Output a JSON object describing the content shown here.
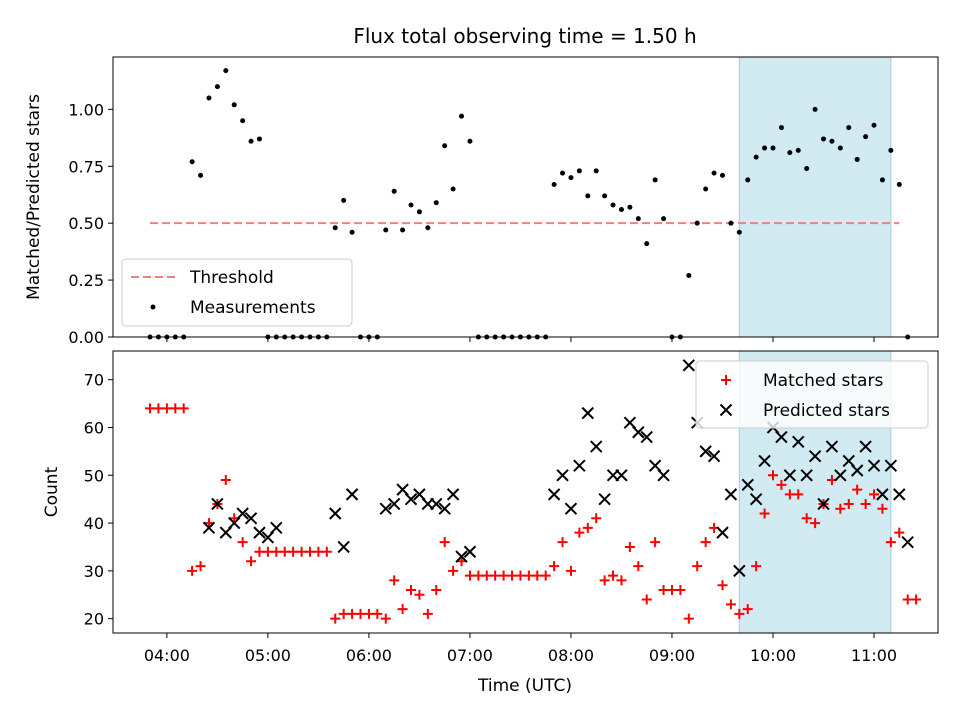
{
  "chart_data": [
    {
      "type": "scatter",
      "title": "Flux total observing time = 1.50 h",
      "xlabel": "",
      "ylabel": "Matched/Predicted stars",
      "xlim": [
        "03:28",
        "11:38"
      ],
      "ylim": [
        0,
        1.23
      ],
      "yticks": [
        "0.00",
        "0.25",
        "0.50",
        "0.75",
        "1.00"
      ],
      "grid": false,
      "legend_position": "lower-left",
      "highlight_span": {
        "start": "09:40",
        "end": "11:10",
        "color": "#add8e6"
      },
      "series": [
        {
          "name": "Threshold",
          "kind": "dashed-line",
          "color": "#f08080",
          "points": [
            [
              "03:50",
              0.5
            ],
            [
              "11:15",
              0.5
            ]
          ]
        },
        {
          "name": "Measurements",
          "kind": "dots",
          "color": "#000000",
          "points": [
            [
              "03:50",
              0.0
            ],
            [
              "03:55",
              0.0
            ],
            [
              "04:00",
              0.0
            ],
            [
              "04:05",
              0.0
            ],
            [
              "04:10",
              0.0
            ],
            [
              "04:15",
              0.77
            ],
            [
              "04:20",
              0.71
            ],
            [
              "04:25",
              1.05
            ],
            [
              "04:30",
              1.1
            ],
            [
              "04:35",
              1.17
            ],
            [
              "04:40",
              1.02
            ],
            [
              "04:45",
              0.95
            ],
            [
              "04:50",
              0.86
            ],
            [
              "04:55",
              0.87
            ],
            [
              "05:00",
              0.0
            ],
            [
              "05:05",
              0.0
            ],
            [
              "05:10",
              0.0
            ],
            [
              "05:15",
              0.0
            ],
            [
              "05:20",
              0.0
            ],
            [
              "05:25",
              0.0
            ],
            [
              "05:30",
              0.0
            ],
            [
              "05:35",
              0.0
            ],
            [
              "05:40",
              0.48
            ],
            [
              "05:45",
              0.6
            ],
            [
              "05:50",
              0.46
            ],
            [
              "05:55",
              0.0
            ],
            [
              "06:00",
              0.0
            ],
            [
              "06:05",
              0.0
            ],
            [
              "06:10",
              0.47
            ],
            [
              "06:15",
              0.64
            ],
            [
              "06:20",
              0.47
            ],
            [
              "06:25",
              0.58
            ],
            [
              "06:30",
              0.55
            ],
            [
              "06:35",
              0.48
            ],
            [
              "06:40",
              0.59
            ],
            [
              "06:45",
              0.84
            ],
            [
              "06:50",
              0.65
            ],
            [
              "06:55",
              0.97
            ],
            [
              "07:00",
              0.86
            ],
            [
              "07:05",
              0.0
            ],
            [
              "07:10",
              0.0
            ],
            [
              "07:15",
              0.0
            ],
            [
              "07:20",
              0.0
            ],
            [
              "07:25",
              0.0
            ],
            [
              "07:30",
              0.0
            ],
            [
              "07:35",
              0.0
            ],
            [
              "07:40",
              0.0
            ],
            [
              "07:45",
              0.0
            ],
            [
              "07:50",
              0.67
            ],
            [
              "07:55",
              0.72
            ],
            [
              "08:00",
              0.7
            ],
            [
              "08:05",
              0.73
            ],
            [
              "08:10",
              0.62
            ],
            [
              "08:15",
              0.73
            ],
            [
              "08:20",
              0.62
            ],
            [
              "08:25",
              0.58
            ],
            [
              "08:30",
              0.56
            ],
            [
              "08:35",
              0.57
            ],
            [
              "08:40",
              0.52
            ],
            [
              "08:45",
              0.41
            ],
            [
              "08:50",
              0.69
            ],
            [
              "08:55",
              0.52
            ],
            [
              "09:00",
              0.0
            ],
            [
              "09:05",
              0.0
            ],
            [
              "09:10",
              0.27
            ],
            [
              "09:15",
              0.5
            ],
            [
              "09:20",
              0.65
            ],
            [
              "09:25",
              0.72
            ],
            [
              "09:30",
              0.71
            ],
            [
              "09:35",
              0.5
            ],
            [
              "09:40",
              0.46
            ],
            [
              "09:45",
              0.69
            ],
            [
              "09:50",
              0.79
            ],
            [
              "09:55",
              0.83
            ],
            [
              "10:00",
              0.83
            ],
            [
              "10:05",
              0.92
            ],
            [
              "10:10",
              0.81
            ],
            [
              "10:15",
              0.82
            ],
            [
              "10:20",
              0.74
            ],
            [
              "10:25",
              1.0
            ],
            [
              "10:30",
              0.87
            ],
            [
              "10:35",
              0.86
            ],
            [
              "10:40",
              0.83
            ],
            [
              "10:45",
              0.92
            ],
            [
              "10:50",
              0.78
            ],
            [
              "10:55",
              0.88
            ],
            [
              "11:00",
              0.93
            ],
            [
              "11:05",
              0.69
            ],
            [
              "11:10",
              0.82
            ],
            [
              "11:15",
              0.67
            ],
            [
              "11:20",
              0.0
            ]
          ]
        }
      ]
    },
    {
      "type": "scatter",
      "title": "",
      "xlabel": "Time (UTC)",
      "ylabel": "Count",
      "xlim": [
        "03:28",
        "11:38"
      ],
      "ylim": [
        17,
        76
      ],
      "yticks": [
        "20",
        "30",
        "40",
        "50",
        "60",
        "70"
      ],
      "xticks": [
        "04:00",
        "05:00",
        "06:00",
        "07:00",
        "08:00",
        "09:00",
        "10:00",
        "11:00"
      ],
      "grid": false,
      "legend_position": "top-right",
      "highlight_span": {
        "start": "09:40",
        "end": "11:10",
        "color": "#add8e6"
      },
      "series": [
        {
          "name": "Matched stars",
          "kind": "plus",
          "color": "#ff0000",
          "points": [
            [
              "03:50",
              64
            ],
            [
              "03:55",
              64
            ],
            [
              "04:00",
              64
            ],
            [
              "04:05",
              64
            ],
            [
              "04:10",
              64
            ],
            [
              "04:15",
              30
            ],
            [
              "04:20",
              31
            ],
            [
              "04:25",
              40
            ],
            [
              "04:30",
              44
            ],
            [
              "04:35",
              49
            ],
            [
              "04:40",
              41
            ],
            [
              "04:45",
              36
            ],
            [
              "04:50",
              32
            ],
            [
              "04:55",
              34
            ],
            [
              "05:00",
              34
            ],
            [
              "05:05",
              34
            ],
            [
              "05:10",
              34
            ],
            [
              "05:15",
              34
            ],
            [
              "05:20",
              34
            ],
            [
              "05:25",
              34
            ],
            [
              "05:30",
              34
            ],
            [
              "05:35",
              34
            ],
            [
              "05:40",
              20
            ],
            [
              "05:45",
              21
            ],
            [
              "05:50",
              21
            ],
            [
              "05:55",
              21
            ],
            [
              "06:00",
              21
            ],
            [
              "06:05",
              21
            ],
            [
              "06:10",
              20
            ],
            [
              "06:15",
              28
            ],
            [
              "06:20",
              22
            ],
            [
              "06:25",
              26
            ],
            [
              "06:30",
              25
            ],
            [
              "06:35",
              21
            ],
            [
              "06:40",
              26
            ],
            [
              "06:45",
              36
            ],
            [
              "06:50",
              30
            ],
            [
              "06:55",
              32
            ],
            [
              "07:00",
              29
            ],
            [
              "07:05",
              29
            ],
            [
              "07:10",
              29
            ],
            [
              "07:15",
              29
            ],
            [
              "07:20",
              29
            ],
            [
              "07:25",
              29
            ],
            [
              "07:30",
              29
            ],
            [
              "07:35",
              29
            ],
            [
              "07:40",
              29
            ],
            [
              "07:45",
              29
            ],
            [
              "07:50",
              31
            ],
            [
              "07:55",
              36
            ],
            [
              "08:00",
              30
            ],
            [
              "08:05",
              38
            ],
            [
              "08:10",
              39
            ],
            [
              "08:15",
              41
            ],
            [
              "08:20",
              28
            ],
            [
              "08:25",
              29
            ],
            [
              "08:30",
              28
            ],
            [
              "08:35",
              35
            ],
            [
              "08:40",
              31
            ],
            [
              "08:45",
              24
            ],
            [
              "08:50",
              36
            ],
            [
              "08:55",
              26
            ],
            [
              "09:00",
              26
            ],
            [
              "09:05",
              26
            ],
            [
              "09:10",
              20
            ],
            [
              "09:15",
              31
            ],
            [
              "09:20",
              36
            ],
            [
              "09:25",
              39
            ],
            [
              "09:30",
              27
            ],
            [
              "09:35",
              23
            ],
            [
              "09:40",
              21
            ],
            [
              "09:45",
              22
            ],
            [
              "09:50",
              31
            ],
            [
              "09:55",
              42
            ],
            [
              "10:00",
              50
            ],
            [
              "10:05",
              48
            ],
            [
              "10:10",
              46
            ],
            [
              "10:15",
              46
            ],
            [
              "10:20",
              41
            ],
            [
              "10:25",
              40
            ],
            [
              "10:30",
              44
            ],
            [
              "10:35",
              49
            ],
            [
              "10:40",
              43
            ],
            [
              "10:45",
              44
            ],
            [
              "10:50",
              47
            ],
            [
              "10:55",
              44
            ],
            [
              "11:00",
              46
            ],
            [
              "11:05",
              43
            ],
            [
              "11:10",
              36
            ],
            [
              "11:15",
              38
            ],
            [
              "11:20",
              24
            ],
            [
              "11:25",
              24
            ]
          ]
        },
        {
          "name": "Predicted stars",
          "kind": "cross",
          "color": "#000000",
          "points": [
            [
              "04:25",
              39
            ],
            [
              "04:30",
              44
            ],
            [
              "04:35",
              38
            ],
            [
              "04:40",
              40
            ],
            [
              "04:45",
              42
            ],
            [
              "04:50",
              41
            ],
            [
              "04:55",
              38
            ],
            [
              "05:00",
              37
            ],
            [
              "05:05",
              39
            ],
            [
              "05:40",
              42
            ],
            [
              "05:45",
              35
            ],
            [
              "05:50",
              46
            ],
            [
              "06:10",
              43
            ],
            [
              "06:15",
              44
            ],
            [
              "06:20",
              47
            ],
            [
              "06:25",
              45
            ],
            [
              "06:30",
              46
            ],
            [
              "06:35",
              44
            ],
            [
              "06:40",
              44
            ],
            [
              "06:45",
              43
            ],
            [
              "06:50",
              46
            ],
            [
              "06:55",
              33
            ],
            [
              "07:00",
              34
            ],
            [
              "07:50",
              46
            ],
            [
              "07:55",
              50
            ],
            [
              "08:00",
              43
            ],
            [
              "08:05",
              52
            ],
            [
              "08:10",
              63
            ],
            [
              "08:15",
              56
            ],
            [
              "08:20",
              45
            ],
            [
              "08:25",
              50
            ],
            [
              "08:30",
              50
            ],
            [
              "08:35",
              61
            ],
            [
              "08:40",
              59
            ],
            [
              "08:45",
              58
            ],
            [
              "08:50",
              52
            ],
            [
              "08:55",
              50
            ],
            [
              "09:10",
              73
            ],
            [
              "09:15",
              61
            ],
            [
              "09:20",
              55
            ],
            [
              "09:25",
              54
            ],
            [
              "09:30",
              38
            ],
            [
              "09:35",
              46
            ],
            [
              "09:40",
              30
            ],
            [
              "09:45",
              48
            ],
            [
              "09:50",
              45
            ],
            [
              "09:55",
              53
            ],
            [
              "10:00",
              60
            ],
            [
              "10:05",
              58
            ],
            [
              "10:10",
              50
            ],
            [
              "10:15",
              57
            ],
            [
              "10:20",
              50
            ],
            [
              "10:25",
              54
            ],
            [
              "10:30",
              44
            ],
            [
              "10:35",
              56
            ],
            [
              "10:40",
              50
            ],
            [
              "10:45",
              53
            ],
            [
              "10:50",
              51
            ],
            [
              "10:55",
              56
            ],
            [
              "11:00",
              52
            ],
            [
              "11:05",
              46
            ],
            [
              "11:10",
              52
            ],
            [
              "11:15",
              46
            ],
            [
              "11:20",
              36
            ]
          ]
        }
      ]
    }
  ]
}
